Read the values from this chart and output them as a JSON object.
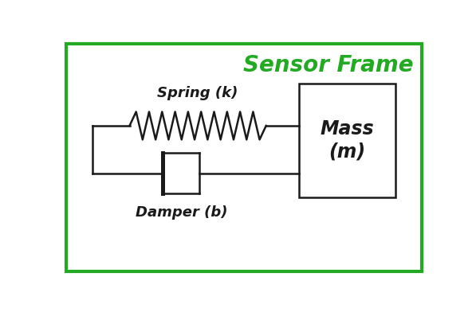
{
  "title": "Sensor Frame",
  "title_color": "#22aa22",
  "title_fontsize": 20,
  "background_color": "#ffffff",
  "border_color": "#22aa22",
  "line_color": "#1a1a1a",
  "spring_label": "Spring (k)",
  "damper_label": "Damper (b)",
  "mass_label": "Mass\n(m)",
  "spring_label_fontsize": 13,
  "damper_label_fontsize": 13,
  "mass_label_fontsize": 17,
  "figsize": [
    5.97,
    3.92
  ],
  "dpi": 100,
  "xlim": [
    0,
    10
  ],
  "ylim": [
    0,
    6.56
  ]
}
